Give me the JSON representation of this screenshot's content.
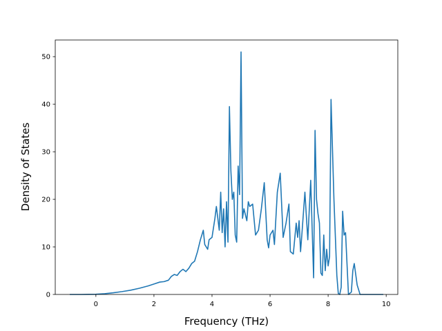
{
  "chart_data": {
    "type": "line",
    "title": "",
    "xlabel": "Frequency (THz)",
    "ylabel": "Density of States",
    "xlim": [
      -1.4,
      10.4
    ],
    "ylim": [
      0,
      53.5
    ],
    "xticks": [
      0,
      2,
      4,
      6,
      8,
      10
    ],
    "yticks": [
      0,
      10,
      20,
      30,
      40,
      50
    ],
    "grid": false,
    "legend": "none",
    "series": [
      {
        "color": "#1f77b4",
        "x": [
          -0.9,
          -0.5,
          0.0,
          0.3,
          0.6,
          0.9,
          1.2,
          1.5,
          1.8,
          2.0,
          2.2,
          2.35,
          2.5,
          2.6,
          2.7,
          2.8,
          2.9,
          3.0,
          3.1,
          3.2,
          3.3,
          3.4,
          3.5,
          3.6,
          3.7,
          3.75,
          3.85,
          3.9,
          4.0,
          4.1,
          4.15,
          4.25,
          4.3,
          4.35,
          4.4,
          4.45,
          4.5,
          4.55,
          4.6,
          4.65,
          4.7,
          4.75,
          4.8,
          4.85,
          4.9,
          4.95,
          5.0,
          5.05,
          5.1,
          5.2,
          5.25,
          5.3,
          5.4,
          5.5,
          5.6,
          5.7,
          5.8,
          5.9,
          5.95,
          6.0,
          6.1,
          6.15,
          6.25,
          6.35,
          6.45,
          6.55,
          6.65,
          6.7,
          6.8,
          6.9,
          6.95,
          7.0,
          7.05,
          7.1,
          7.2,
          7.3,
          7.4,
          7.5,
          7.55,
          7.6,
          7.65,
          7.7,
          7.75,
          7.8,
          7.85,
          7.9,
          7.95,
          8.0,
          8.05,
          8.1,
          8.2,
          8.3,
          8.35,
          8.4,
          8.45,
          8.5,
          8.55,
          8.6,
          8.7,
          8.8,
          8.85,
          8.9,
          9.0,
          9.1,
          9.5,
          9.9
        ],
        "y": [
          0,
          0,
          0.05,
          0.15,
          0.35,
          0.6,
          0.9,
          1.3,
          1.8,
          2.2,
          2.6,
          2.7,
          3.0,
          3.8,
          4.2,
          4.0,
          4.8,
          5.3,
          4.8,
          5.5,
          6.5,
          7.0,
          9.0,
          11.5,
          13.5,
          10.5,
          9.5,
          11.5,
          12.0,
          16.0,
          18.5,
          13.5,
          21.5,
          13.0,
          18.0,
          10.0,
          19.5,
          11.0,
          39.5,
          26.0,
          20.0,
          21.5,
          12.5,
          11.0,
          27.0,
          21.0,
          51.0,
          16.0,
          18.0,
          15.5,
          19.5,
          18.5,
          19.0,
          12.5,
          13.5,
          18.0,
          23.5,
          11.5,
          9.8,
          12.5,
          13.5,
          10.5,
          21.5,
          25.5,
          12.0,
          15.0,
          19.0,
          9.0,
          8.5,
          15.0,
          12.0,
          15.5,
          9.0,
          13.0,
          21.5,
          11.5,
          24.0,
          3.5,
          34.5,
          20.0,
          17.0,
          15.0,
          4.5,
          4.0,
          12.5,
          5.0,
          9.5,
          6.0,
          8.0,
          41.0,
          20.0,
          4.0,
          0.2,
          0.0,
          1.5,
          17.5,
          12.5,
          13.0,
          0.0,
          0.5,
          5.0,
          6.5,
          2.0,
          0.0,
          0.0,
          0.0
        ]
      }
    ]
  }
}
